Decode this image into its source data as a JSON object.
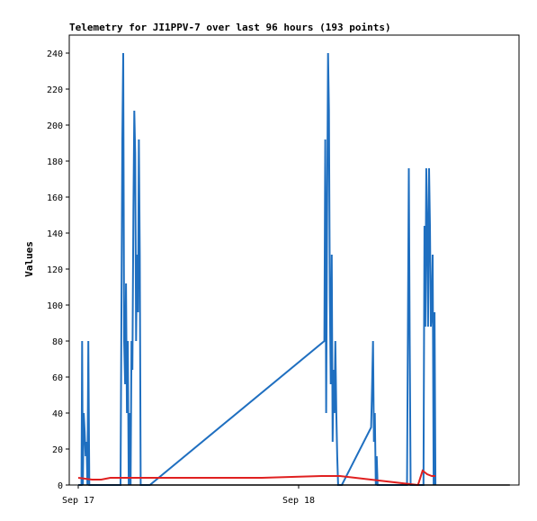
{
  "chart_data": {
    "type": "line",
    "title": "Telemetry for JI1PPV-7 over last 96 hours (193 points)",
    "xlabel": "",
    "ylabel": "Values",
    "x_ticks": [
      "Sep 17",
      "Sep 18"
    ],
    "ylim": [
      0,
      250
    ],
    "y_ticks": [
      0,
      20,
      40,
      60,
      80,
      100,
      120,
      140,
      160,
      180,
      200,
      220,
      240
    ],
    "xlim_hours": [
      0,
      48
    ],
    "grid": false,
    "legend": "none",
    "colors": {
      "blue_series": "#1f6fc0",
      "red_series": "#e02020",
      "black_series": "#000000"
    },
    "series": [
      {
        "x": [
          0.0,
          0.35,
          0.42,
          0.5,
          0.6,
          0.7,
          0.8,
          0.9,
          1.0,
          1.1,
          1.2,
          1.4,
          1.5,
          1.7,
          1.8,
          1.9,
          2.0,
          2.2,
          4.6,
          4.7,
          4.8,
          4.9,
          5.0,
          5.1,
          5.2,
          5.3,
          5.4,
          5.5,
          5.6,
          5.7,
          5.8,
          5.9,
          6.0,
          6.1,
          6.2,
          6.3,
          6.4,
          6.5,
          6.6,
          6.7,
          6.8,
          6.9,
          7.0,
          7.1,
          7.2,
          7.3,
          7.4,
          7.5,
          7.6,
          7.7,
          7.8,
          26.8,
          26.9,
          27.0,
          27.1,
          27.2,
          27.3,
          27.4,
          27.5,
          27.6,
          27.7,
          27.8,
          27.9,
          28.0,
          28.1,
          28.2,
          28.3,
          28.4,
          28.5,
          28.6,
          28.7,
          31.9,
          32.0,
          32.1,
          32.2,
          32.3,
          32.4,
          32.5,
          32.6,
          35.8,
          35.9,
          36.0,
          36.1,
          36.2,
          36.3,
          37.6,
          37.7,
          37.8,
          37.9,
          38.0,
          38.1,
          38.2,
          38.3,
          38.4,
          38.5,
          38.6,
          38.7,
          38.8,
          38.9
        ],
        "y": [
          0,
          0,
          80,
          0,
          40,
          30,
          16,
          24,
          0,
          80,
          0,
          0,
          0,
          0,
          0,
          0,
          0,
          0,
          0,
          96,
          192,
          240,
          80,
          56,
          112,
          40,
          80,
          0,
          40,
          0,
          80,
          64,
          152,
          208,
          184,
          80,
          128,
          96,
          192,
          128,
          0,
          0,
          0,
          0,
          0,
          0,
          0,
          0,
          0,
          0,
          0,
          80,
          192,
          40,
          144,
          240,
          208,
          104,
          56,
          128,
          24,
          64,
          40,
          80,
          40,
          16,
          0,
          0,
          0,
          0,
          0,
          32,
          56,
          80,
          24,
          40,
          0,
          16,
          0,
          0,
          88,
          176,
          80,
          0,
          0,
          0,
          144,
          88,
          176,
          144,
          88,
          176,
          144,
          88,
          96,
          128,
          0,
          96,
          0
        ]
      },
      {
        "x": [
          0.0,
          1.5,
          2.5,
          3.5,
          4.5,
          11.5,
          20.0,
          26.5,
          28.5,
          37.0,
          37.5,
          38.0,
          38.5,
          38.9
        ],
        "y": [
          4,
          3,
          3,
          4,
          4,
          4,
          4,
          5,
          5,
          0,
          8,
          6,
          5,
          5
        ]
      },
      {
        "x": [
          0.0,
          47.0
        ],
        "y": [
          0,
          0
        ]
      }
    ]
  }
}
